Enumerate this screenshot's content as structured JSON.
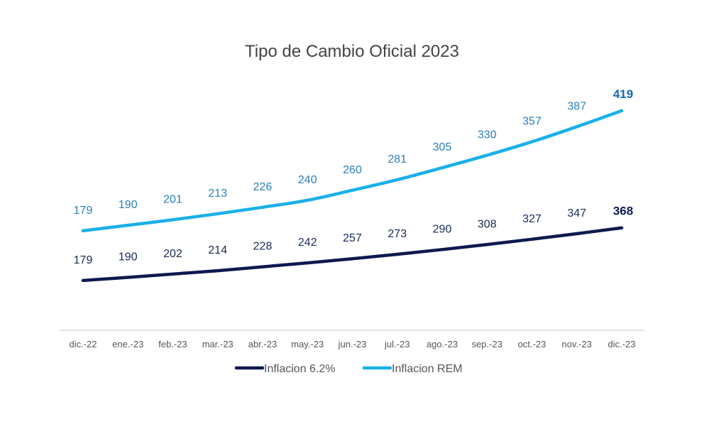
{
  "chart_data": {
    "type": "line",
    "title": "Tipo de Cambio Oficial 2023",
    "xlabel": "",
    "ylabel": "",
    "categories": [
      "dic.-22",
      "ene.-23",
      "feb.-23",
      "mar.-23",
      "abr.-23",
      "may.-23",
      "jun.-23",
      "jul.-23",
      "ago.-23",
      "sep.-23",
      "oct.-23",
      "nov.-23",
      "dic.-23"
    ],
    "grid": false,
    "legend_position": "bottom",
    "series": [
      {
        "name": "Inflacion 6.2%",
        "color": "#0d1a4f",
        "label_color": "#1a2a55",
        "ylim": [
          0,
          880
        ],
        "values": [
          179,
          190,
          202,
          214,
          228,
          242,
          257,
          273,
          290,
          308,
          327,
          347,
          368
        ]
      },
      {
        "name": "Inflacion REM",
        "color": "#1ab0e8",
        "label_color": "#2a7fb8",
        "last_label_color": "#1565b5",
        "ylim": [
          -20,
          470
        ],
        "values": [
          179,
          190,
          201,
          213,
          226,
          240,
          260,
          281,
          305,
          330,
          357,
          387,
          419
        ]
      }
    ]
  }
}
